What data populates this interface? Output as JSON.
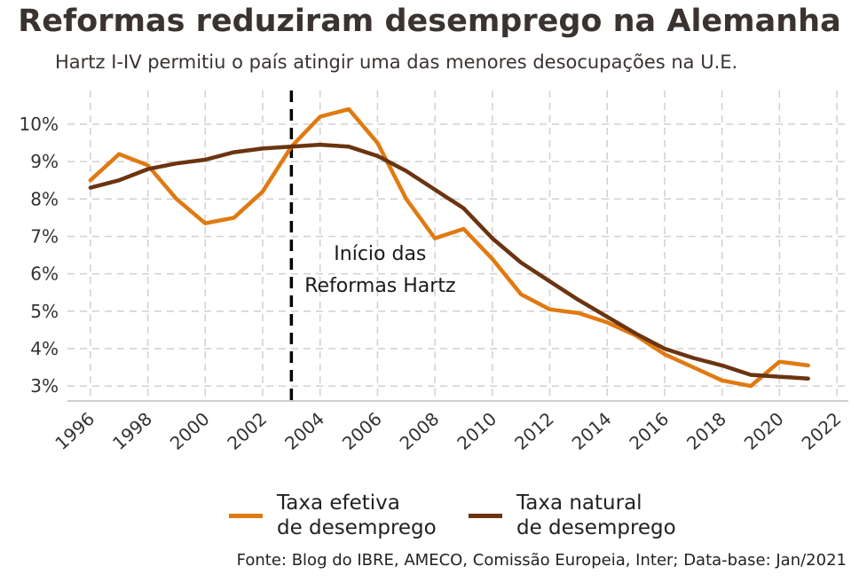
{
  "title": "Reformas reduziram desemprego na Alemanha",
  "subtitle": "Hartz I-IV permitiu o país atingir uma das menores desocupações na U.E.",
  "source": "Fonte: Blog do IBRE, AMECO, Comissão Europeia, Inter; Data-base: Jan/2021",
  "colors": {
    "effective": "#e07a10",
    "natural": "#6b3410",
    "grid": "#d0d0d0",
    "vline": "#000000"
  },
  "chart_data": {
    "type": "line",
    "x": [
      1996,
      1997,
      1998,
      1999,
      2000,
      2001,
      2002,
      2003,
      2004,
      2005,
      2006,
      2007,
      2008,
      2009,
      2010,
      2011,
      2012,
      2013,
      2014,
      2015,
      2016,
      2017,
      2018,
      2019,
      2020,
      2021
    ],
    "series": [
      {
        "name": "Taxa efetiva\nde desemprego",
        "color": "#e07a10",
        "values": [
          8.5,
          9.2,
          8.9,
          8.0,
          7.35,
          7.5,
          8.2,
          9.4,
          10.2,
          10.4,
          9.5,
          8.0,
          6.95,
          7.2,
          6.4,
          5.45,
          5.05,
          4.95,
          4.7,
          4.35,
          3.85,
          3.5,
          3.15,
          3.0,
          3.65,
          3.55
        ]
      },
      {
        "name": "Taxa natural\nde desemprego",
        "color": "#6b3410",
        "values": [
          8.3,
          8.5,
          8.8,
          8.95,
          9.05,
          9.25,
          9.35,
          9.4,
          9.45,
          9.4,
          9.15,
          8.75,
          8.25,
          7.75,
          6.95,
          6.3,
          5.8,
          5.3,
          4.85,
          4.4,
          4.0,
          3.75,
          3.55,
          3.3,
          3.25,
          3.2
        ]
      }
    ],
    "x_ticks": [
      1996,
      1998,
      2000,
      2002,
      2004,
      2006,
      2008,
      2010,
      2012,
      2014,
      2016,
      2018,
      2020,
      2022
    ],
    "y_ticks": [
      3,
      4,
      5,
      6,
      7,
      8,
      9,
      10
    ],
    "y_tick_labels": [
      "3%",
      "4%",
      "5%",
      "6%",
      "7%",
      "8%",
      "9%",
      "10%"
    ],
    "xlim": [
      1995.2,
      2022.4
    ],
    "ylim": [
      2.6,
      10.9
    ],
    "grid": true,
    "legend": "bottom",
    "annotation": {
      "x": 2003,
      "lines": [
        "Início das",
        "Reformas Hartz"
      ]
    }
  }
}
